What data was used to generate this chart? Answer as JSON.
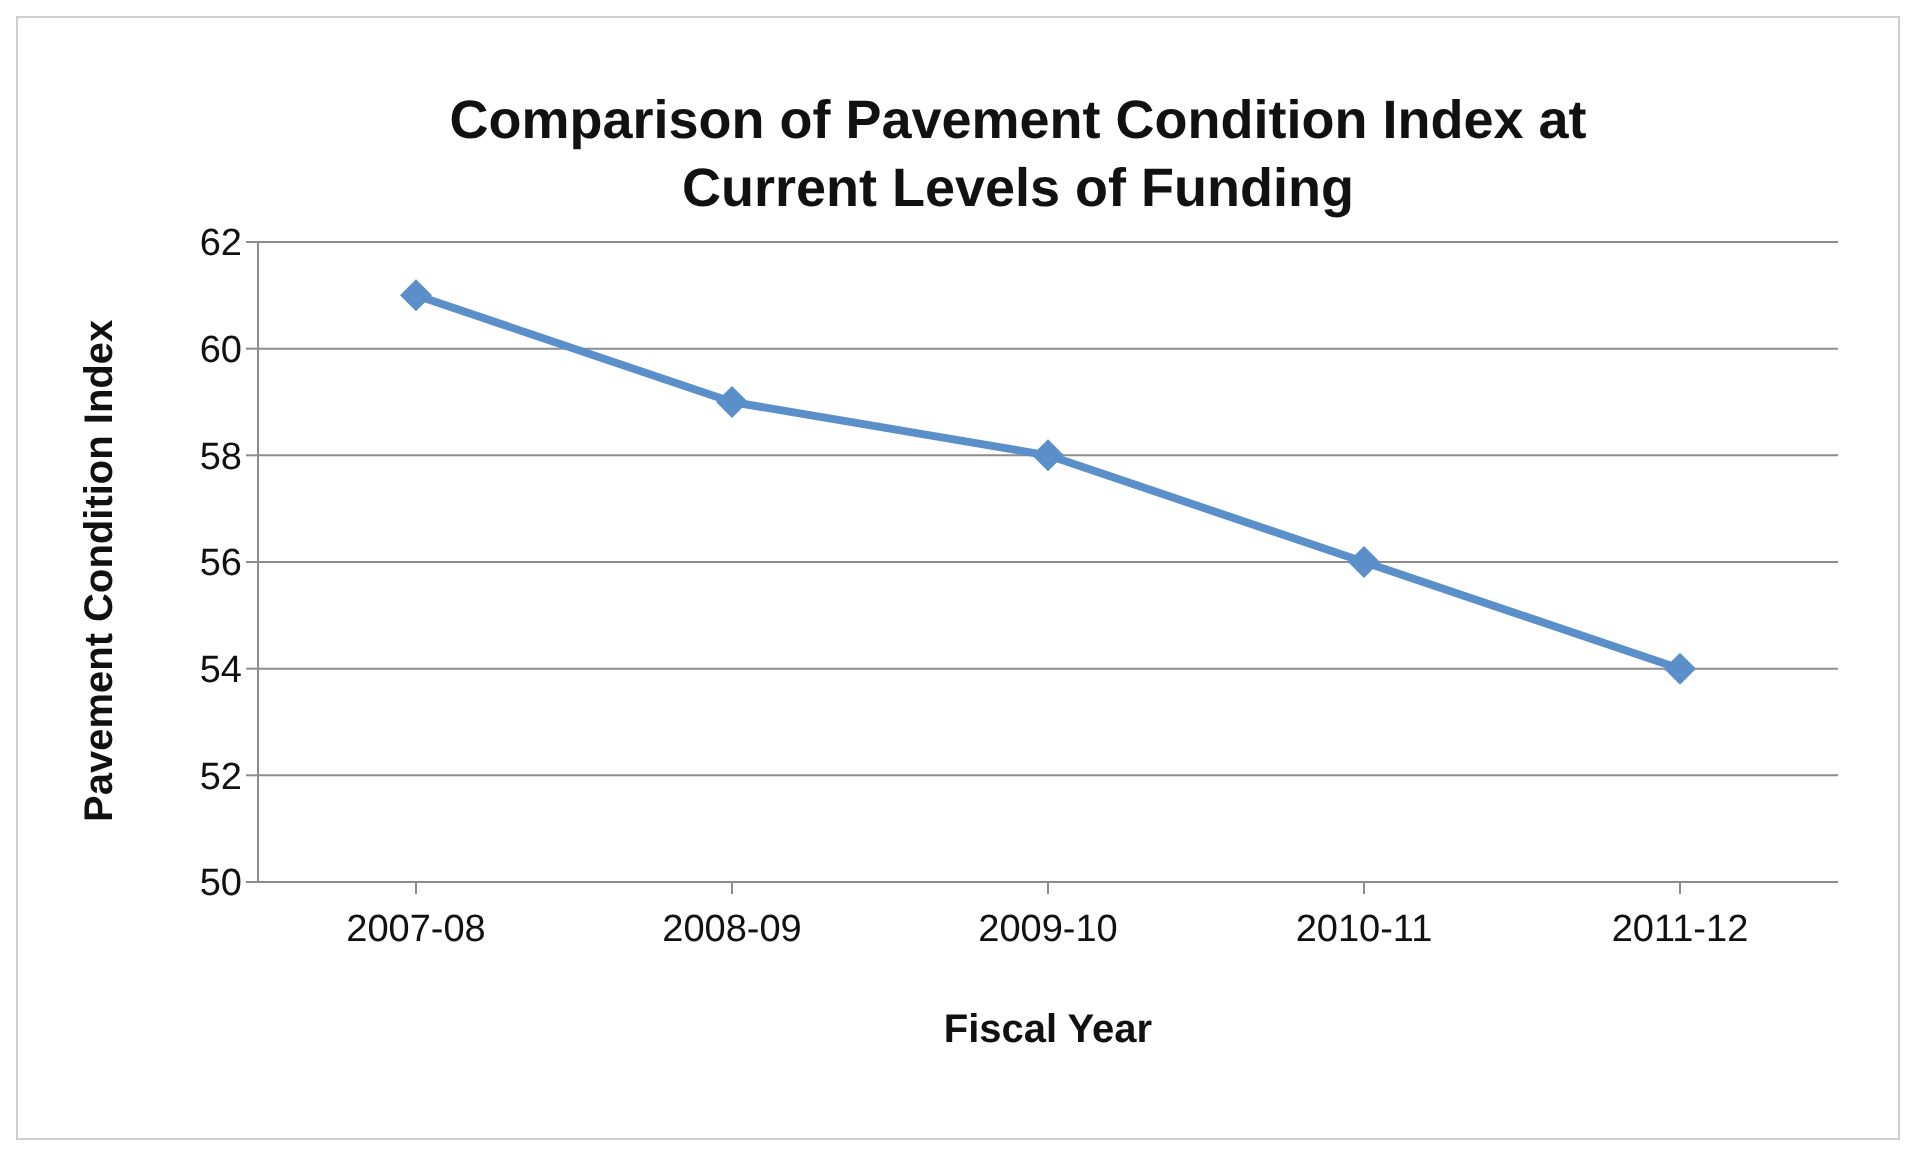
{
  "chart_data": {
    "type": "line",
    "title": "Comparison of Pavement Condition Index at\nCurrent Levels of Funding",
    "xlabel": "Fiscal Year",
    "ylabel": "Pavement Condition Index",
    "categories": [
      "2007-08",
      "2008-09",
      "2009-10",
      "2010-11",
      "2011-12"
    ],
    "series": [
      {
        "color": "#5b8fc9",
        "values": [
          61,
          59,
          58,
          56,
          54
        ]
      }
    ],
    "ylim": [
      50,
      62
    ],
    "yticks": [
      50,
      52,
      54,
      56,
      58,
      60,
      62
    ],
    "grid": "y",
    "marker": "diamond",
    "legend": false
  }
}
